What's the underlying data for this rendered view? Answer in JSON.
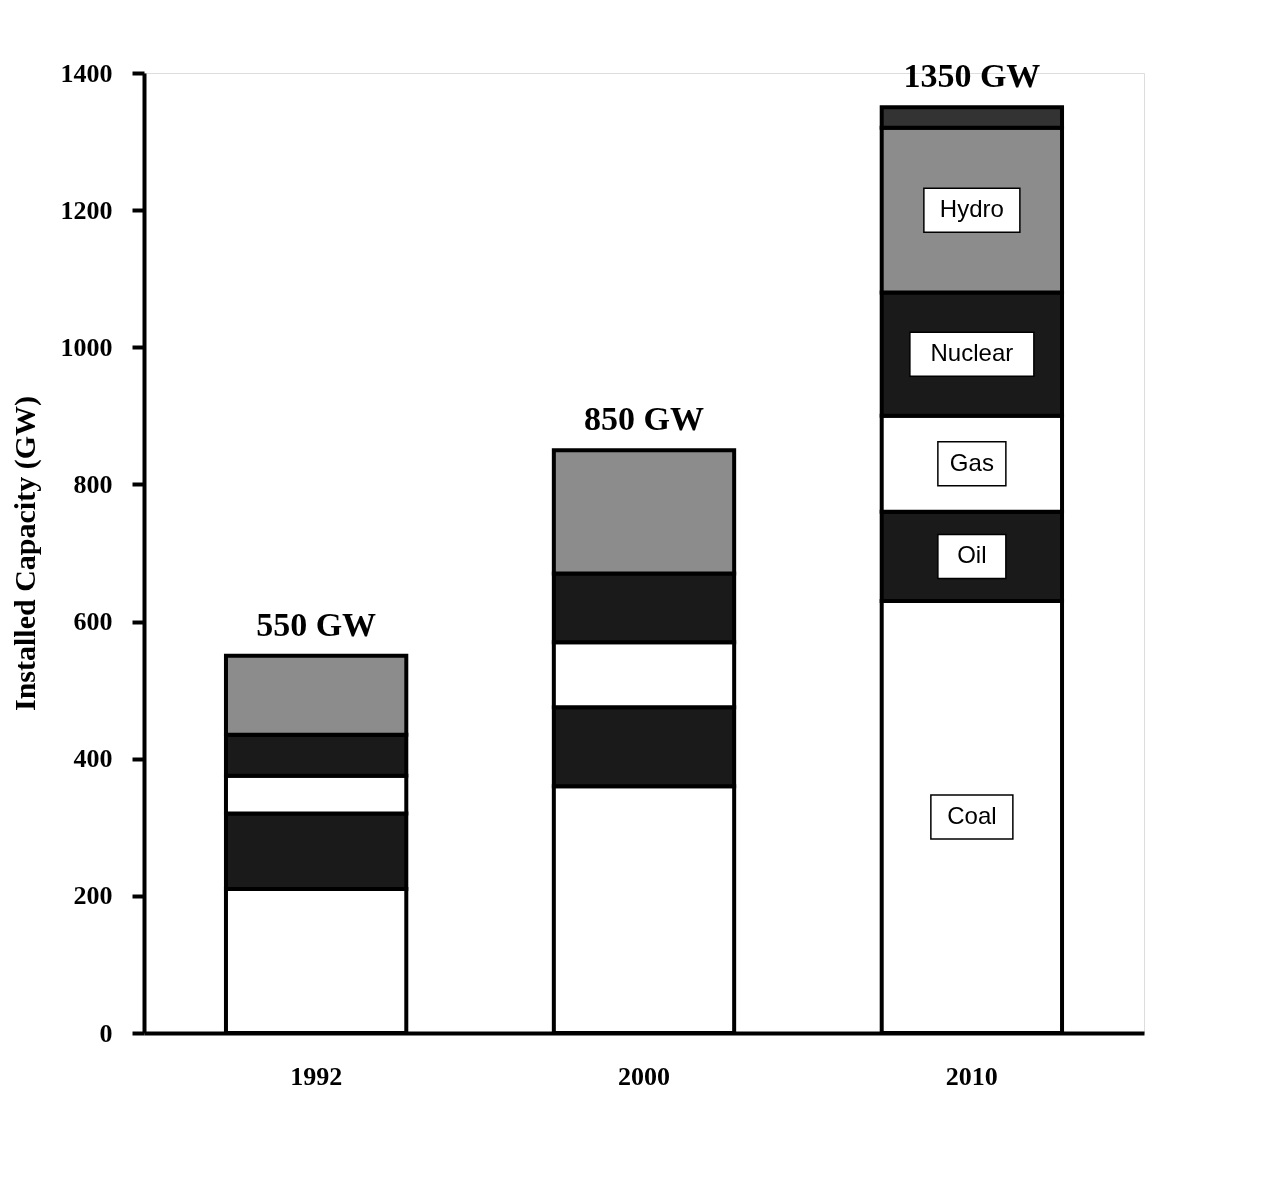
{
  "chart_data": {
    "type": "bar",
    "stacked": true,
    "ylabel": "Installed Capacity (GW)",
    "categories": [
      "1992",
      "2000",
      "2010"
    ],
    "series": [
      {
        "name": "Coal",
        "color": "#ffffff",
        "values": [
          210,
          360,
          630
        ]
      },
      {
        "name": "Oil",
        "color": "#1a1a1a",
        "values": [
          110,
          115,
          130
        ]
      },
      {
        "name": "Gas",
        "color": "#ffffff",
        "values": [
          55,
          95,
          140
        ]
      },
      {
        "name": "Nuclear",
        "color": "#1a1a1a",
        "values": [
          60,
          100,
          180
        ]
      },
      {
        "name": "Hydro",
        "color": "#8c8c8c",
        "values": [
          115,
          180,
          240
        ]
      },
      {
        "color": "#333333",
        "values": [
          null,
          null,
          30
        ]
      }
    ],
    "totals": [
      "550 GW",
      "850 GW",
      "1350 GW"
    ],
    "ylim": [
      0,
      1400
    ],
    "yticks": [
      0,
      200,
      400,
      600,
      800,
      1000,
      1200,
      1400
    ],
    "grid": false
  }
}
